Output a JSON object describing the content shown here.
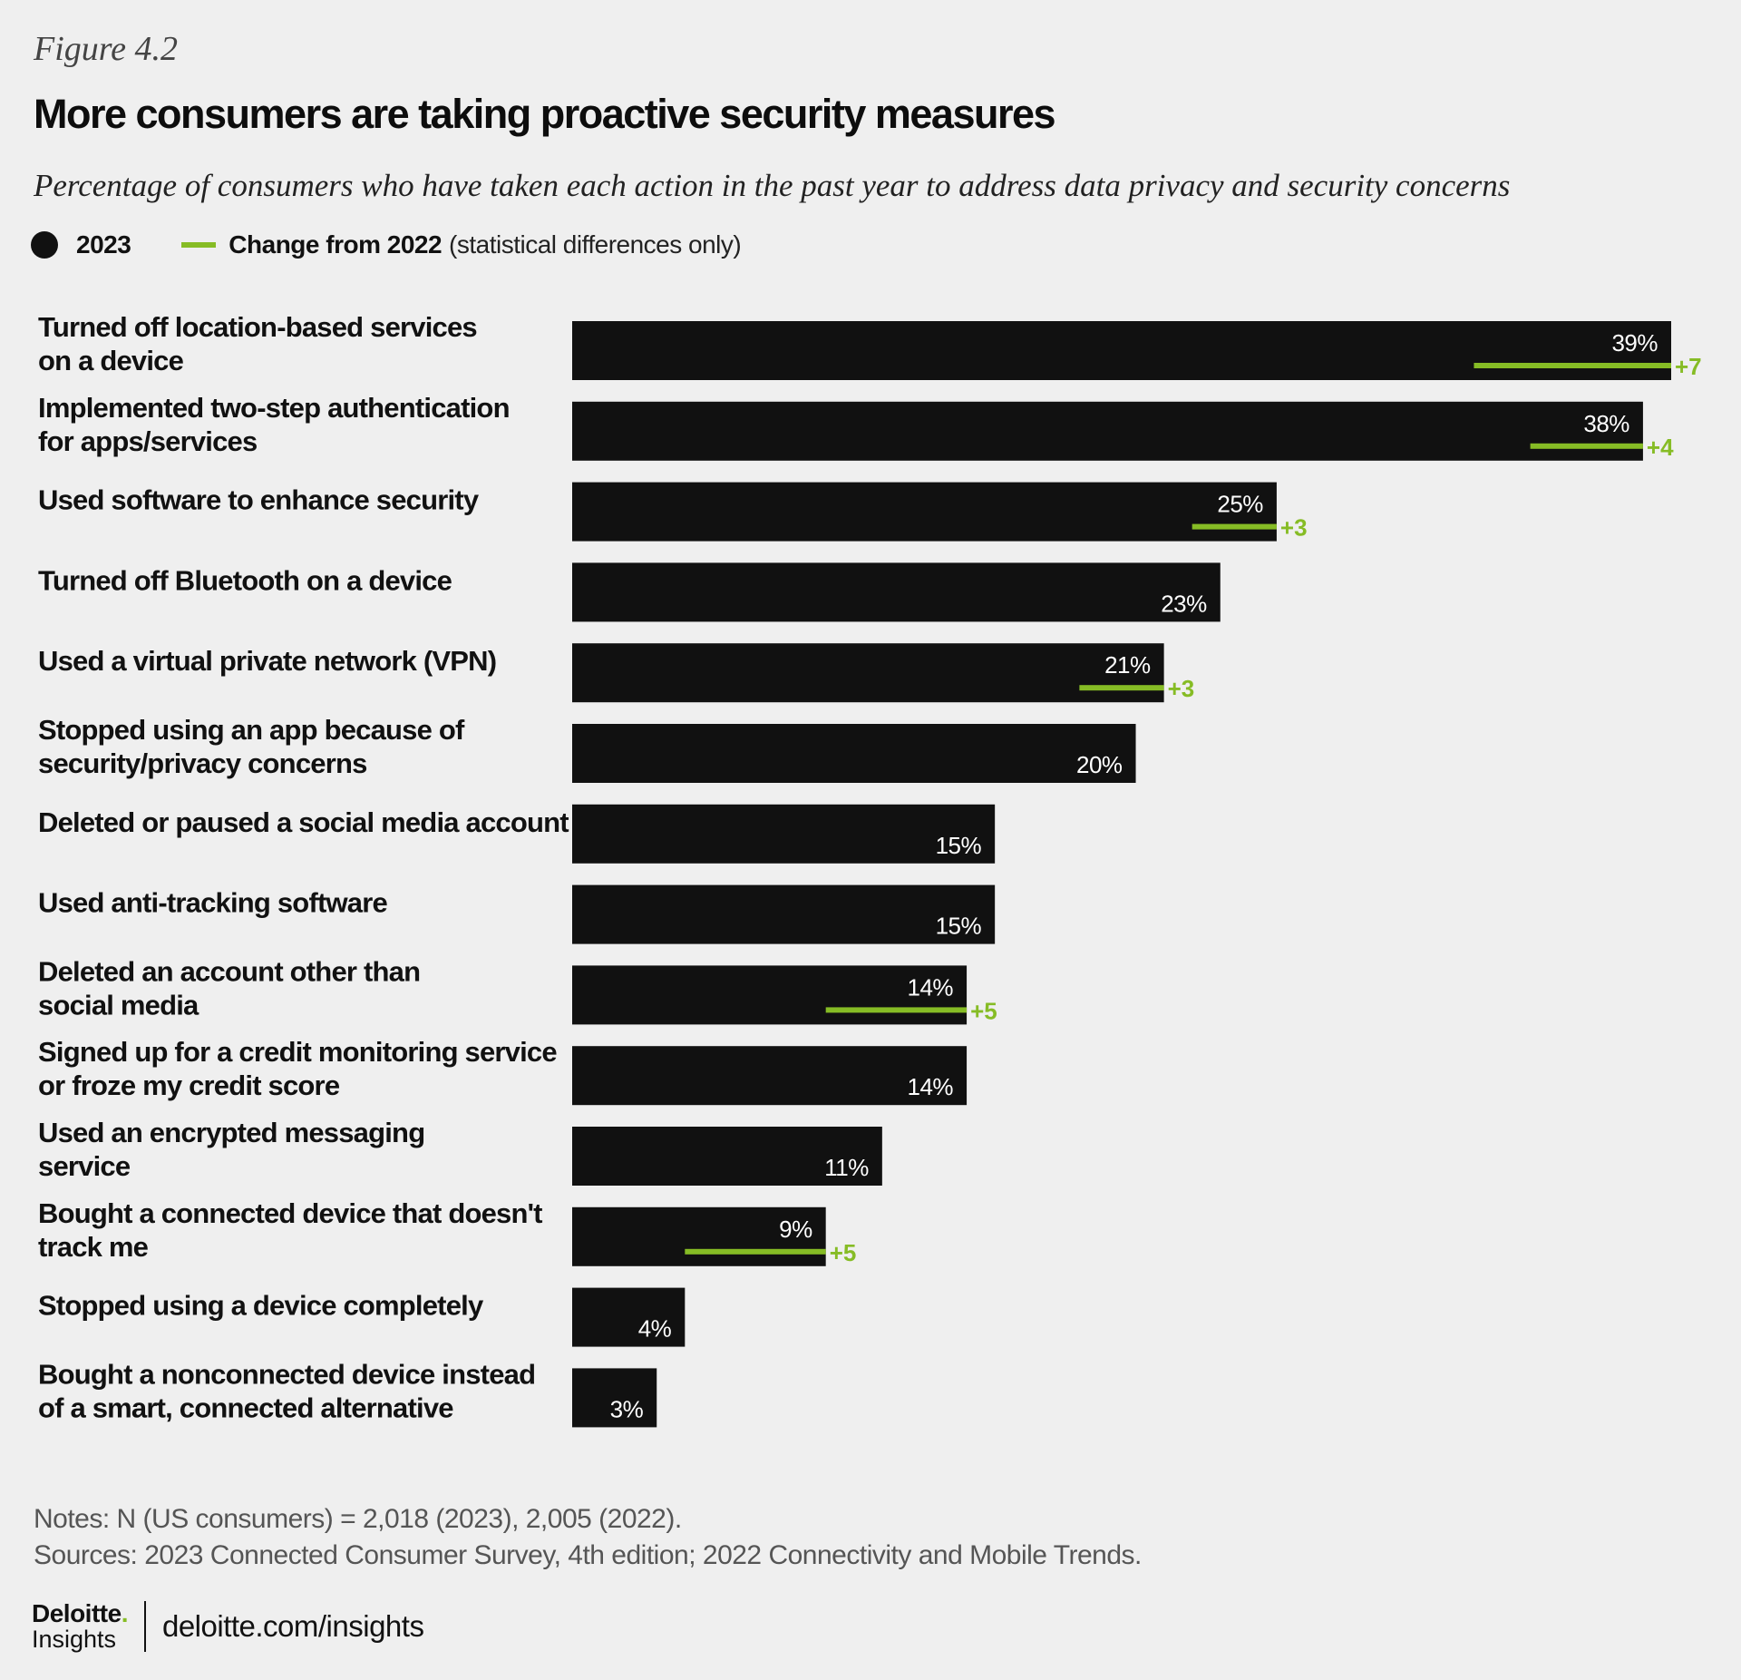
{
  "figure_label": "Figure 4.2",
  "title": "More consumers are taking proactive security measures",
  "subtitle": "Percentage of consumers who have taken each action in the past year to address data privacy and security concerns",
  "legend": {
    "series_2023": "2023",
    "change_label": "Change from 2022",
    "change_note": "(statistical differences only)"
  },
  "colors": {
    "bar": "#111111",
    "change": "#86bc25",
    "background": "#efefef"
  },
  "chart_data": {
    "type": "bar",
    "orientation": "horizontal",
    "categories": [
      [
        "Turned off location-based services",
        "on a device"
      ],
      [
        "Implemented two-step authentication",
        "for apps/services"
      ],
      [
        "Used software to enhance security"
      ],
      [
        "Turned off Bluetooth on a device"
      ],
      [
        "Used a virtual private network (VPN)"
      ],
      [
        "Stopped using an app because of",
        "security/privacy concerns"
      ],
      [
        "Deleted or paused a social media account"
      ],
      [
        "Used anti-tracking software"
      ],
      [
        "Deleted an account other than",
        "social media"
      ],
      [
        "Signed up for a credit monitoring service",
        "or froze my credit score"
      ],
      [
        "Used an encrypted messaging",
        "service"
      ],
      [
        "Bought a connected device that doesn't",
        "track me"
      ],
      [
        "Stopped using a device completely"
      ],
      [
        "Bought a nonconnected device instead",
        "of a smart, connected alternative"
      ]
    ],
    "series": [
      {
        "name": "2023",
        "values": [
          39,
          38,
          25,
          23,
          21,
          20,
          15,
          15,
          14,
          14,
          11,
          9,
          4,
          3
        ]
      },
      {
        "name": "Change from 2022",
        "values": [
          7,
          4,
          3,
          null,
          3,
          null,
          null,
          null,
          5,
          null,
          null,
          5,
          null,
          null
        ]
      }
    ],
    "value_labels": [
      "39%",
      "38%",
      "25%",
      "23%",
      "21%",
      "20%",
      "15%",
      "15%",
      "14%",
      "14%",
      "11%",
      "9%",
      "4%",
      "3%"
    ],
    "change_labels": [
      "+7",
      "+4",
      "+3",
      null,
      "+3",
      null,
      null,
      null,
      "+5",
      null,
      null,
      "+5",
      null,
      null
    ],
    "xlim": [
      0,
      39
    ],
    "grid": false,
    "legend_position": "top-left"
  },
  "notes": "Notes: N (US consumers) = 2,018 (2023), 2,005 (2022).",
  "sources": "Sources: 2023 Connected Consumer Survey, 4th edition; 2022 Connectivity and Mobile Trends.",
  "footer": {
    "logo_top": "Deloitte",
    "logo_dot": ".",
    "logo_bottom": "Insights",
    "site": "deloitte.com/insights"
  }
}
